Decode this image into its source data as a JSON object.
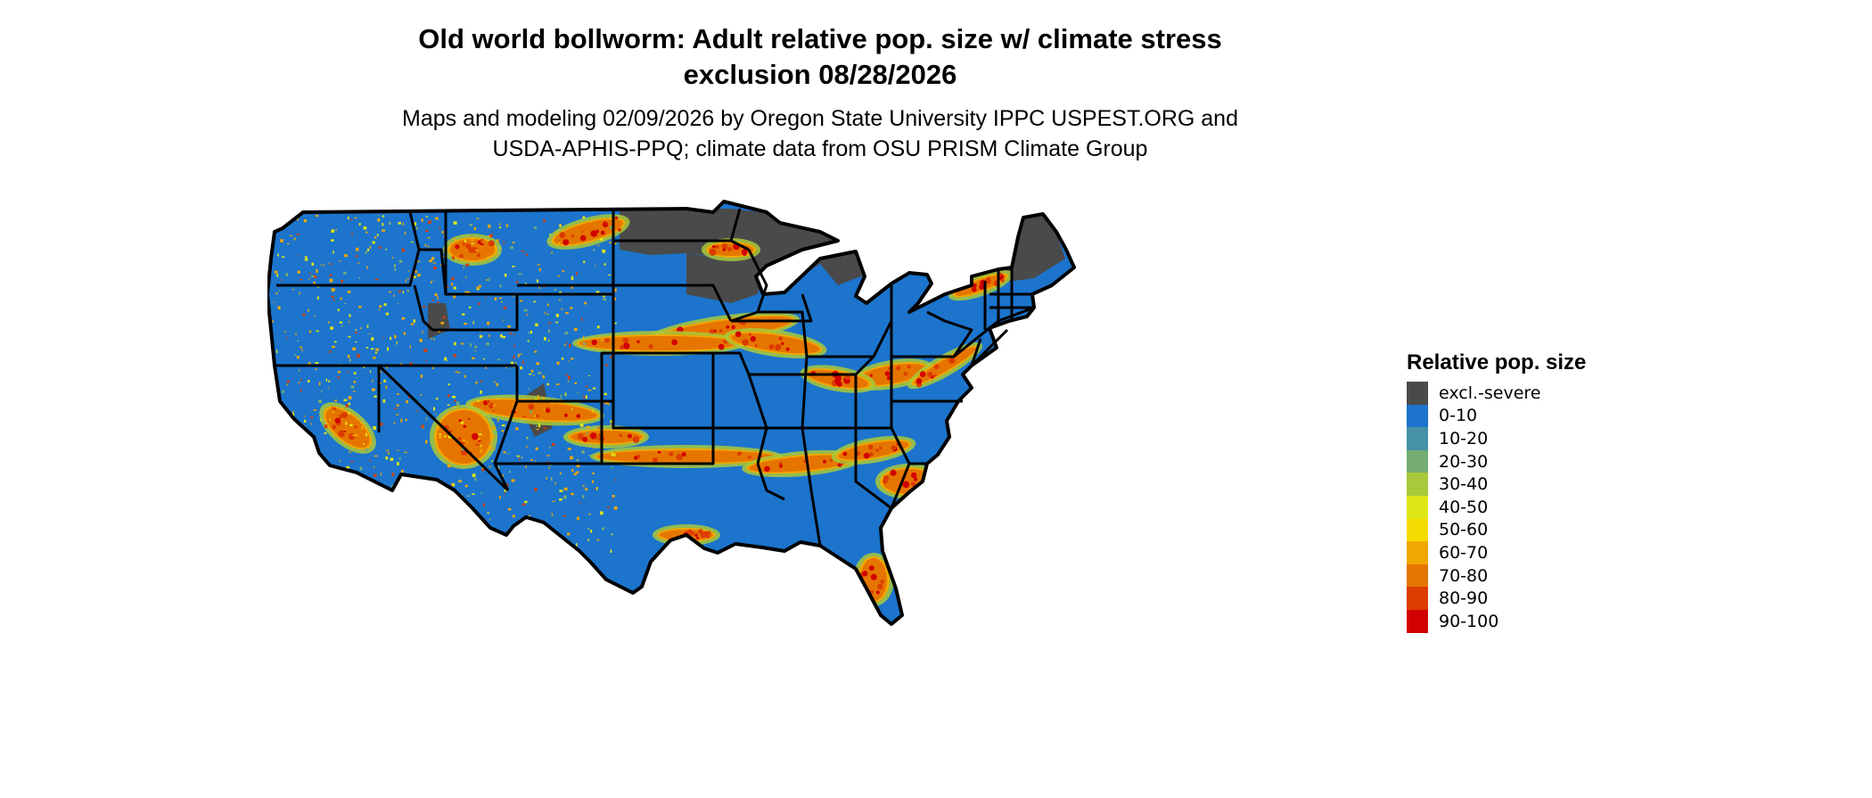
{
  "title_lines": [
    "Old world bollworm: Adult relative pop. size w/ climate stress",
    "exclusion 08/28/2026"
  ],
  "subtitle_lines": [
    "Maps and modeling 02/09/2026 by Oregon State University IPPC USPEST.ORG and",
    "USDA-APHIS-PPQ; climate data from OSU PRISM Climate Group"
  ],
  "legend": {
    "title": "Relative pop. size",
    "items": [
      {
        "label": "excl.-severe",
        "color": "#4a4a4a"
      },
      {
        "label": "0-10",
        "color": "#1c74cc"
      },
      {
        "label": "10-20",
        "color": "#4691a6"
      },
      {
        "label": "20-30",
        "color": "#75ad72"
      },
      {
        "label": "30-40",
        "color": "#a8c93a"
      },
      {
        "label": "40-50",
        "color": "#dfe615"
      },
      {
        "label": "50-60",
        "color": "#f6db00"
      },
      {
        "label": "60-70",
        "color": "#f0a800"
      },
      {
        "label": "70-80",
        "color": "#e67500"
      },
      {
        "label": "80-90",
        "color": "#dc3c00"
      },
      {
        "label": "90-100",
        "color": "#d20000"
      }
    ]
  }
}
